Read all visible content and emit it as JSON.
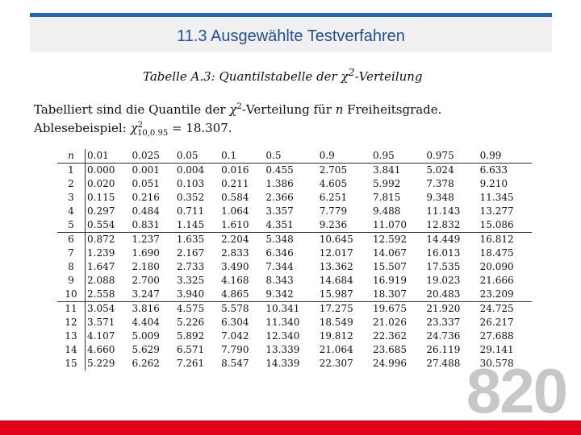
{
  "header": {
    "title": "11.3 Ausgewählte Testverfahren"
  },
  "caption": {
    "table": "Tabelle",
    "label": "A.3:",
    "text": "Quantilstabelle der",
    "symbol": "χ",
    "exp": "2",
    "suffix": "-Verteilung"
  },
  "intro": {
    "line1_a": "Tabelliert sind die Quantile der ",
    "chi": "χ",
    "two": "2",
    "line1_b": "-Verteilung für ",
    "n": "n",
    "line1_c": " Freiheitsgrade.",
    "line2_a": "Ablesebeispiel: ",
    "sub": "10,0.95",
    "line2_b": " = 18.307."
  },
  "table": {
    "headers": [
      "n",
      "0.01",
      "0.025",
      "0.05",
      "0.1",
      "0.5",
      "0.9",
      "0.95",
      "0.975",
      "0.99"
    ],
    "rows": [
      [
        "1",
        "0.000",
        "0.001",
        "0.004",
        "0.016",
        "0.455",
        "2.705",
        "3.841",
        "5.024",
        "6.633"
      ],
      [
        "2",
        "0.020",
        "0.051",
        "0.103",
        "0.211",
        "1.386",
        "4.605",
        "5.992",
        "7.378",
        "9.210"
      ],
      [
        "3",
        "0.115",
        "0.216",
        "0.352",
        "0.584",
        "2.366",
        "6.251",
        "7.815",
        "9.348",
        "11.345"
      ],
      [
        "4",
        "0.297",
        "0.484",
        "0.711",
        "1.064",
        "3.357",
        "7.779",
        "9.488",
        "11.143",
        "13.277"
      ],
      [
        "5",
        "0.554",
        "0.831",
        "1.145",
        "1.610",
        "4.351",
        "9.236",
        "11.070",
        "12.832",
        "15.086"
      ],
      [
        "6",
        "0.872",
        "1.237",
        "1.635",
        "2.204",
        "5.348",
        "10.645",
        "12.592",
        "14.449",
        "16.812"
      ],
      [
        "7",
        "1.239",
        "1.690",
        "2.167",
        "2.833",
        "6.346",
        "12.017",
        "14.067",
        "16.013",
        "18.475"
      ],
      [
        "8",
        "1.647",
        "2.180",
        "2.733",
        "3.490",
        "7.344",
        "13.362",
        "15.507",
        "17.535",
        "20.090"
      ],
      [
        "9",
        "2.088",
        "2.700",
        "3.325",
        "4.168",
        "8.343",
        "14.684",
        "16.919",
        "19.023",
        "21.666"
      ],
      [
        "10",
        "2.558",
        "3.247",
        "3.940",
        "4.865",
        "9.342",
        "15.987",
        "18.307",
        "20.483",
        "23.209"
      ],
      [
        "11",
        "3.054",
        "3.816",
        "4.575",
        "5.578",
        "10.341",
        "17.275",
        "19.675",
        "21.920",
        "24.725"
      ],
      [
        "12",
        "3.571",
        "4.404",
        "5.226",
        "6.304",
        "11.340",
        "18.549",
        "21.026",
        "23.337",
        "26.217"
      ],
      [
        "13",
        "4.107",
        "5.009",
        "5.892",
        "7.042",
        "12.340",
        "19.812",
        "22.362",
        "24.736",
        "27.688"
      ],
      [
        "14",
        "4.660",
        "5.629",
        "6.571",
        "7.790",
        "13.339",
        "21.064",
        "23.685",
        "26.119",
        "29.141"
      ],
      [
        "15",
        "5.229",
        "6.262",
        "7.261",
        "8.547",
        "14.339",
        "22.307",
        "24.996",
        "27.488",
        "30.578"
      ]
    ]
  },
  "page": {
    "number": "820"
  },
  "colors": {
    "accent": "#1f67b8",
    "title": "#1f4f9a",
    "footer": "#e2001a",
    "page_number": "#c7c7c7"
  }
}
